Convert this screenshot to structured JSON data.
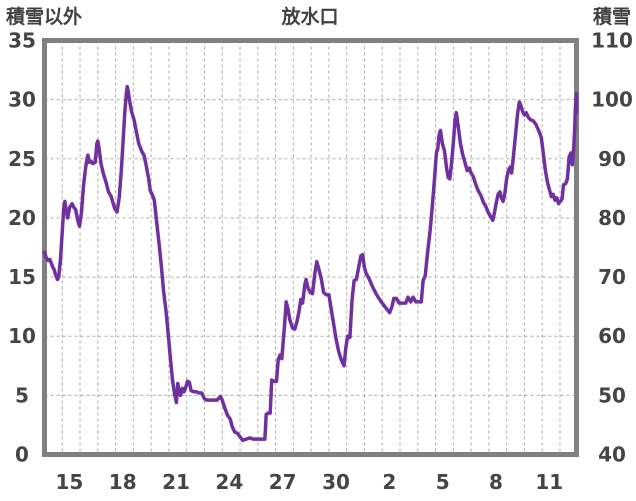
{
  "header": {
    "left": "積雪以外",
    "center": "放水口",
    "right": "積雪"
  },
  "colors": {
    "line": "#7030A0",
    "grid": "#ABABAB",
    "border": "#808080",
    "text": "#454545"
  },
  "chart_data": {
    "type": "line",
    "title": "放水口",
    "left_axis": {
      "label": "積雪以外",
      "min": 0,
      "max": 35,
      "ticks": [
        0,
        5,
        10,
        15,
        20,
        25,
        30,
        35
      ]
    },
    "right_axis": {
      "label": "積雪",
      "min": 40,
      "max": 110,
      "ticks": [
        40,
        50,
        60,
        70,
        80,
        90,
        100,
        110
      ]
    },
    "x_axis": {
      "tick_labels": [
        "15",
        "18",
        "21",
        "24",
        "27",
        "30",
        "2",
        "5",
        "8",
        "11"
      ],
      "first_tick_day": 1.4,
      "tick_interval_days": 3,
      "minor_grid_interval_days": 1,
      "total_days": 29.93
    },
    "grid": "dashed gray, daily vertical + every-5-units horizontal",
    "legend": "none",
    "series": [
      {
        "name": "放水口",
        "axis": "left",
        "color": "#7030A0",
        "points": [
          [
            0.0,
            17.1
          ],
          [
            0.1,
            16.6
          ],
          [
            0.2,
            16.4
          ],
          [
            0.3,
            16.5
          ],
          [
            0.45,
            15.9
          ],
          [
            0.55,
            15.6
          ],
          [
            0.62,
            15.2
          ],
          [
            0.73,
            14.8
          ],
          [
            0.8,
            15.0
          ],
          [
            0.9,
            16.5
          ],
          [
            1.0,
            18.9
          ],
          [
            1.08,
            20.8
          ],
          [
            1.15,
            21.4
          ],
          [
            1.25,
            20.4
          ],
          [
            1.3,
            20.0
          ],
          [
            1.42,
            20.9
          ],
          [
            1.55,
            21.2
          ],
          [
            1.65,
            20.9
          ],
          [
            1.75,
            20.7
          ],
          [
            1.9,
            19.6
          ],
          [
            1.97,
            19.3
          ],
          [
            2.08,
            20.5
          ],
          [
            2.2,
            22.8
          ],
          [
            2.32,
            24.3
          ],
          [
            2.4,
            25.1
          ],
          [
            2.45,
            25.3
          ],
          [
            2.52,
            24.7
          ],
          [
            2.62,
            24.8
          ],
          [
            2.72,
            24.6
          ],
          [
            2.85,
            24.7
          ],
          [
            2.95,
            26.3
          ],
          [
            3.0,
            26.5
          ],
          [
            3.08,
            25.8
          ],
          [
            3.18,
            24.6
          ],
          [
            3.3,
            23.8
          ],
          [
            3.48,
            22.9
          ],
          [
            3.6,
            22.2
          ],
          [
            3.75,
            21.8
          ],
          [
            3.95,
            20.8
          ],
          [
            4.08,
            20.5
          ],
          [
            4.2,
            21.7
          ],
          [
            4.32,
            24.0
          ],
          [
            4.42,
            26.5
          ],
          [
            4.52,
            28.9
          ],
          [
            4.6,
            30.5
          ],
          [
            4.66,
            31.1
          ],
          [
            4.72,
            30.6
          ],
          [
            4.8,
            29.8
          ],
          [
            4.9,
            29.0
          ],
          [
            5.05,
            28.2
          ],
          [
            5.18,
            27.2
          ],
          [
            5.3,
            26.3
          ],
          [
            5.48,
            25.6
          ],
          [
            5.6,
            25.3
          ],
          [
            5.7,
            24.6
          ],
          [
            5.85,
            23.4
          ],
          [
            5.95,
            22.3
          ],
          [
            6.08,
            21.9
          ],
          [
            6.18,
            21.5
          ],
          [
            6.3,
            19.8
          ],
          [
            6.45,
            17.8
          ],
          [
            6.58,
            15.8
          ],
          [
            6.7,
            13.8
          ],
          [
            6.85,
            11.9
          ],
          [
            6.95,
            10.4
          ],
          [
            7.08,
            8.2
          ],
          [
            7.2,
            6.3
          ],
          [
            7.32,
            5.1
          ],
          [
            7.42,
            4.4
          ],
          [
            7.5,
            6.0
          ],
          [
            7.58,
            5.3
          ],
          [
            7.65,
            5.0
          ],
          [
            7.75,
            5.6
          ],
          [
            7.85,
            5.3
          ],
          [
            7.95,
            5.7
          ],
          [
            8.05,
            6.2
          ],
          [
            8.15,
            6.1
          ],
          [
            8.25,
            5.4
          ],
          [
            8.4,
            5.3
          ],
          [
            8.55,
            5.3
          ],
          [
            8.7,
            5.2
          ],
          [
            8.85,
            5.2
          ],
          [
            9.0,
            4.7
          ],
          [
            9.15,
            4.6
          ],
          [
            9.3,
            4.6
          ],
          [
            9.5,
            4.6
          ],
          [
            9.7,
            4.6
          ],
          [
            9.9,
            4.9
          ],
          [
            10.0,
            4.6
          ],
          [
            10.15,
            3.9
          ],
          [
            10.3,
            3.3
          ],
          [
            10.45,
            3.0
          ],
          [
            10.55,
            2.4
          ],
          [
            10.7,
            1.9
          ],
          [
            10.85,
            1.8
          ],
          [
            11.0,
            1.5
          ],
          [
            11.15,
            1.2
          ],
          [
            11.35,
            1.3
          ],
          [
            11.55,
            1.4
          ],
          [
            11.75,
            1.3
          ],
          [
            11.95,
            1.3
          ],
          [
            12.15,
            1.3
          ],
          [
            12.4,
            1.3
          ],
          [
            12.47,
            3.4
          ],
          [
            12.6,
            3.5
          ],
          [
            12.7,
            3.5
          ],
          [
            12.78,
            6.3
          ],
          [
            12.9,
            6.2
          ],
          [
            13.05,
            6.2
          ],
          [
            13.15,
            8.0
          ],
          [
            13.25,
            8.4
          ],
          [
            13.35,
            8.1
          ],
          [
            13.5,
            10.9
          ],
          [
            13.6,
            12.9
          ],
          [
            13.7,
            12.3
          ],
          [
            13.8,
            11.4
          ],
          [
            13.95,
            10.7
          ],
          [
            14.08,
            10.6
          ],
          [
            14.2,
            11.2
          ],
          [
            14.32,
            12.1
          ],
          [
            14.42,
            13.1
          ],
          [
            14.52,
            12.8
          ],
          [
            14.65,
            14.4
          ],
          [
            14.72,
            14.8
          ],
          [
            14.82,
            14.1
          ],
          [
            14.95,
            13.7
          ],
          [
            15.08,
            13.6
          ],
          [
            15.2,
            15.2
          ],
          [
            15.32,
            16.3
          ],
          [
            15.45,
            15.6
          ],
          [
            15.58,
            14.8
          ],
          [
            15.7,
            13.7
          ],
          [
            15.85,
            13.5
          ],
          [
            16.0,
            13.5
          ],
          [
            16.12,
            12.4
          ],
          [
            16.25,
            11.2
          ],
          [
            16.4,
            9.8
          ],
          [
            16.55,
            8.7
          ],
          [
            16.7,
            8.0
          ],
          [
            16.85,
            7.5
          ],
          [
            16.95,
            9.0
          ],
          [
            17.05,
            10.0
          ],
          [
            17.18,
            9.9
          ],
          [
            17.3,
            13.0
          ],
          [
            17.42,
            14.7
          ],
          [
            17.55,
            14.8
          ],
          [
            17.68,
            15.9
          ],
          [
            17.8,
            16.8
          ],
          [
            17.9,
            16.9
          ],
          [
            18.0,
            15.8
          ],
          [
            18.1,
            15.3
          ],
          [
            18.25,
            14.9
          ],
          [
            18.45,
            14.2
          ],
          [
            18.65,
            13.6
          ],
          [
            18.85,
            13.1
          ],
          [
            19.05,
            12.7
          ],
          [
            19.25,
            12.3
          ],
          [
            19.42,
            12.0
          ],
          [
            19.55,
            12.5
          ],
          [
            19.65,
            13.2
          ],
          [
            19.8,
            13.2
          ],
          [
            19.95,
            12.8
          ],
          [
            20.15,
            12.8
          ],
          [
            20.32,
            12.8
          ],
          [
            20.45,
            13.3
          ],
          [
            20.6,
            12.9
          ],
          [
            20.73,
            13.3
          ],
          [
            20.9,
            12.9
          ],
          [
            21.05,
            12.9
          ],
          [
            21.2,
            12.9
          ],
          [
            21.3,
            14.7
          ],
          [
            21.42,
            15.1
          ],
          [
            21.55,
            17.0
          ],
          [
            21.7,
            19.0
          ],
          [
            21.82,
            21.0
          ],
          [
            21.95,
            23.5
          ],
          [
            22.05,
            25.5
          ],
          [
            22.12,
            25.8
          ],
          [
            22.2,
            27.0
          ],
          [
            22.28,
            27.4
          ],
          [
            22.38,
            26.3
          ],
          [
            22.5,
            25.7
          ],
          [
            22.62,
            24.2
          ],
          [
            22.72,
            23.4
          ],
          [
            22.8,
            23.3
          ],
          [
            22.9,
            24.6
          ],
          [
            23.0,
            26.3
          ],
          [
            23.1,
            28.3
          ],
          [
            23.17,
            28.9
          ],
          [
            23.28,
            27.7
          ],
          [
            23.4,
            26.3
          ],
          [
            23.52,
            25.4
          ],
          [
            23.65,
            24.7
          ],
          [
            23.78,
            24.0
          ],
          [
            23.9,
            24.2
          ],
          [
            24.0,
            23.8
          ],
          [
            24.12,
            23.5
          ],
          [
            24.25,
            22.9
          ],
          [
            24.4,
            22.3
          ],
          [
            24.55,
            21.9
          ],
          [
            24.7,
            21.3
          ],
          [
            24.82,
            21.0
          ],
          [
            24.95,
            20.5
          ],
          [
            25.1,
            20.1
          ],
          [
            25.22,
            19.8
          ],
          [
            25.32,
            20.5
          ],
          [
            25.42,
            21.3
          ],
          [
            25.52,
            22.0
          ],
          [
            25.62,
            22.2
          ],
          [
            25.7,
            21.7
          ],
          [
            25.8,
            21.4
          ],
          [
            25.9,
            22.1
          ],
          [
            26.0,
            23.3
          ],
          [
            26.1,
            24.0
          ],
          [
            26.2,
            24.3
          ],
          [
            26.28,
            23.8
          ],
          [
            26.38,
            25.2
          ],
          [
            26.5,
            27.0
          ],
          [
            26.62,
            28.9
          ],
          [
            26.72,
            29.8
          ],
          [
            26.8,
            29.5
          ],
          [
            26.9,
            29.0
          ],
          [
            27.0,
            28.7
          ],
          [
            27.1,
            28.9
          ],
          [
            27.22,
            28.5
          ],
          [
            27.35,
            28.3
          ],
          [
            27.5,
            28.2
          ],
          [
            27.65,
            27.9
          ],
          [
            27.8,
            27.4
          ],
          [
            27.95,
            26.8
          ],
          [
            28.05,
            25.6
          ],
          [
            28.18,
            24.0
          ],
          [
            28.3,
            23.0
          ],
          [
            28.42,
            22.3
          ],
          [
            28.52,
            21.8
          ],
          [
            28.62,
            22.0
          ],
          [
            28.72,
            21.5
          ],
          [
            28.82,
            21.7
          ],
          [
            28.92,
            21.2
          ],
          [
            29.02,
            21.4
          ],
          [
            29.12,
            21.6
          ],
          [
            29.2,
            22.8
          ],
          [
            29.32,
            22.9
          ],
          [
            29.42,
            23.3
          ],
          [
            29.52,
            25.2
          ],
          [
            29.62,
            25.5
          ],
          [
            29.7,
            24.5
          ],
          [
            29.78,
            26.0
          ],
          [
            29.83,
            27.5
          ],
          [
            29.87,
            29.3
          ],
          [
            29.9,
            30.0
          ],
          [
            29.93,
            28.9
          ],
          [
            29.97,
            30.5
          ]
        ]
      }
    ]
  }
}
